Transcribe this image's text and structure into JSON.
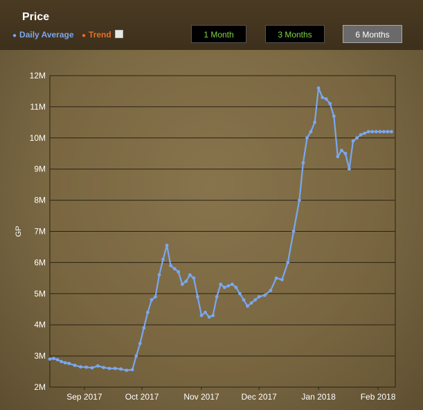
{
  "header": {
    "title": "Price",
    "legend_daily": "Daily Average",
    "legend_trend": "Trend"
  },
  "range_buttons": {
    "one_month": "1 Month",
    "three_months": "3 Months",
    "six_months": "6 Months",
    "selected": "6 Months"
  },
  "colors": {
    "daily_average": "#7ba7f0",
    "trend": "#e8702a",
    "gridline": "#2a2114",
    "tick_label": "#ffffff"
  },
  "chart_data": {
    "type": "line",
    "title": "Price",
    "ylabel": "GP",
    "xlabel": "",
    "ylim": [
      2000000,
      12000000
    ],
    "y_ticks": [
      2000000,
      3000000,
      4000000,
      5000000,
      6000000,
      7000000,
      8000000,
      9000000,
      10000000,
      11000000,
      12000000
    ],
    "y_tick_labels": [
      "2M",
      "3M",
      "4M",
      "5M",
      "6M",
      "7M",
      "8M",
      "9M",
      "10M",
      "11M",
      "12M"
    ],
    "xlim": [
      "2017-08-14",
      "2018-02-10"
    ],
    "x_ticks": [
      "2017-09-01",
      "2017-10-01",
      "2017-11-01",
      "2017-12-01",
      "2018-01-01",
      "2018-02-01"
    ],
    "x_tick_labels": [
      "Sep 2017",
      "Oct 2017",
      "Nov 2017",
      "Dec 2017",
      "Jan 2018",
      "Feb 2018"
    ],
    "grid": true,
    "legend_position": "top-left",
    "series": [
      {
        "name": "Daily Average",
        "x": [
          "2017-08-14",
          "2017-08-16",
          "2017-08-18",
          "2017-08-20",
          "2017-08-22",
          "2017-08-24",
          "2017-08-27",
          "2017-08-30",
          "2017-09-02",
          "2017-09-05",
          "2017-09-08",
          "2017-09-11",
          "2017-09-14",
          "2017-09-17",
          "2017-09-20",
          "2017-09-23",
          "2017-09-26",
          "2017-09-28",
          "2017-09-30",
          "2017-10-02",
          "2017-10-04",
          "2017-10-06",
          "2017-10-08",
          "2017-10-10",
          "2017-10-12",
          "2017-10-14",
          "2017-10-16",
          "2017-10-18",
          "2017-10-20",
          "2017-10-22",
          "2017-10-24",
          "2017-10-26",
          "2017-10-28",
          "2017-10-30",
          "2017-11-01",
          "2017-11-03",
          "2017-11-05",
          "2017-11-07",
          "2017-11-09",
          "2017-11-11",
          "2017-11-13",
          "2017-11-15",
          "2017-11-17",
          "2017-11-19",
          "2017-11-21",
          "2017-11-23",
          "2017-11-25",
          "2017-11-27",
          "2017-11-29",
          "2017-12-01",
          "2017-12-04",
          "2017-12-07",
          "2017-12-10",
          "2017-12-13",
          "2017-12-16",
          "2017-12-19",
          "2017-12-22",
          "2017-12-24",
          "2017-12-26",
          "2017-12-28",
          "2017-12-30",
          "2018-01-01",
          "2018-01-03",
          "2018-01-05",
          "2018-01-07",
          "2018-01-09",
          "2018-01-11",
          "2018-01-13",
          "2018-01-15",
          "2018-01-17",
          "2018-01-19",
          "2018-01-21",
          "2018-01-23",
          "2018-01-25",
          "2018-01-27",
          "2018-01-29",
          "2018-01-31",
          "2018-02-02",
          "2018-02-04",
          "2018-02-06",
          "2018-02-08"
        ],
        "values": [
          2900000,
          2920000,
          2880000,
          2820000,
          2780000,
          2760000,
          2700000,
          2650000,
          2640000,
          2620000,
          2680000,
          2630000,
          2600000,
          2600000,
          2580000,
          2540000,
          2560000,
          3000000,
          3400000,
          3900000,
          4400000,
          4800000,
          4900000,
          5600000,
          6100000,
          6550000,
          5900000,
          5800000,
          5700000,
          5300000,
          5400000,
          5600000,
          5500000,
          4900000,
          4300000,
          4400000,
          4250000,
          4300000,
          4900000,
          5300000,
          5200000,
          5250000,
          5300000,
          5200000,
          5000000,
          4800000,
          4600000,
          4700000,
          4800000,
          4900000,
          4950000,
          5100000,
          5500000,
          5450000,
          6000000,
          7000000,
          8000000,
          9200000,
          10000000,
          10200000,
          10500000,
          11600000,
          11300000,
          11250000,
          11100000,
          10700000,
          9400000,
          9600000,
          9500000,
          9000000,
          9900000,
          10000000,
          10100000,
          10150000,
          10200000,
          10200000,
          10200000,
          10200000,
          10200000,
          10200000,
          10200000
        ]
      }
    ]
  }
}
